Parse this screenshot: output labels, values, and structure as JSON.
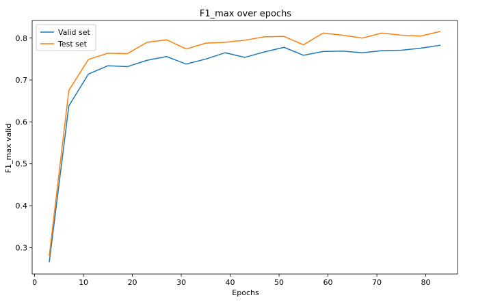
{
  "chart_data": {
    "type": "line",
    "title": "F1_max over epochs",
    "xlabel": "Epochs",
    "ylabel": "F1_max valid",
    "xlim": [
      -0.5,
      86.5
    ],
    "ylim": [
      0.237,
      0.842
    ],
    "xticks": [
      0,
      10,
      20,
      30,
      40,
      50,
      60,
      70,
      80
    ],
    "yticks": [
      0.3,
      0.4,
      0.5,
      0.6,
      0.7,
      0.8
    ],
    "grid": false,
    "legend_position": "top-left",
    "x": [
      3,
      7,
      11,
      15,
      19,
      23,
      27,
      31,
      35,
      39,
      43,
      47,
      51,
      55,
      59,
      63,
      67,
      71,
      75,
      79,
      83
    ],
    "series": [
      {
        "name": "Valid set",
        "color": "#1f77b4",
        "values": [
          0.265,
          0.638,
          0.714,
          0.734,
          0.732,
          0.747,
          0.756,
          0.738,
          0.75,
          0.765,
          0.754,
          0.767,
          0.778,
          0.759,
          0.768,
          0.769,
          0.765,
          0.77,
          0.771,
          0.776,
          0.783
        ]
      },
      {
        "name": "Test set",
        "color": "#ff7f0e",
        "values": [
          0.28,
          0.675,
          0.749,
          0.764,
          0.763,
          0.79,
          0.796,
          0.774,
          0.788,
          0.79,
          0.795,
          0.803,
          0.804,
          0.784,
          0.812,
          0.807,
          0.8,
          0.812,
          0.807,
          0.805,
          0.816
        ]
      }
    ]
  }
}
